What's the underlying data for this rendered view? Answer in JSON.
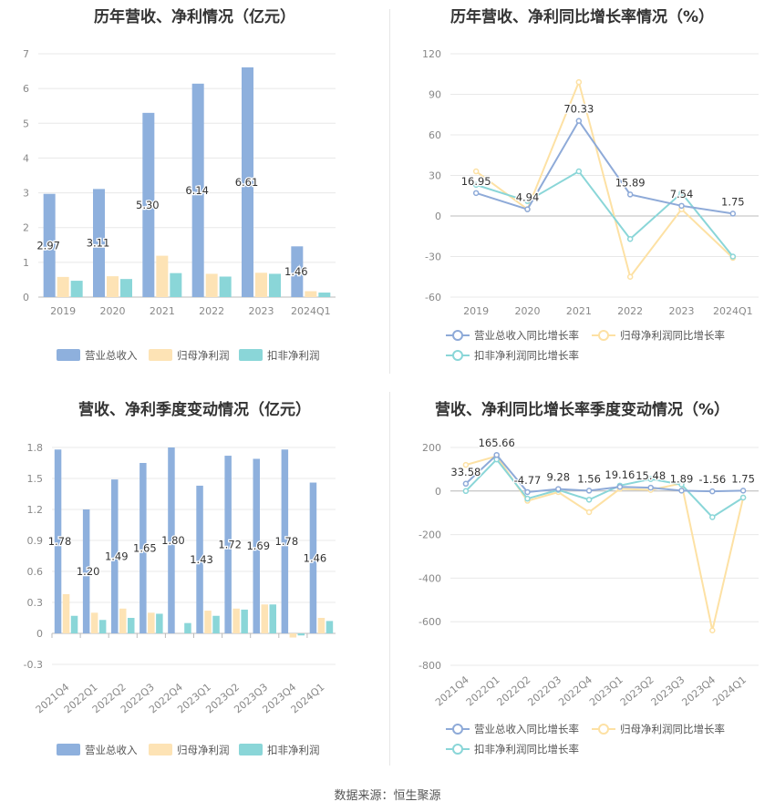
{
  "source": "数据来源：恒生聚源",
  "chart_data": [
    {
      "id": "annual_bar",
      "type": "bar",
      "title": "历年营收、净利情况（亿元）",
      "categories": [
        "2019",
        "2020",
        "2021",
        "2022",
        "2023",
        "2024Q1"
      ],
      "ylim": [
        0,
        7
      ],
      "yticks": [
        0,
        1,
        2,
        3,
        4,
        5,
        6,
        7
      ],
      "grid": true,
      "legend": "bottom",
      "series": [
        {
          "name": "营业总收入",
          "color": "#8eb0dd",
          "values": [
            2.97,
            3.11,
            5.3,
            6.14,
            6.61,
            1.46
          ],
          "labels": [
            "2.97",
            "3.11",
            "5.30",
            "6.14",
            "6.61",
            "1.46"
          ]
        },
        {
          "name": "归母净利润",
          "color": "#fde3b5",
          "values": [
            0.58,
            0.6,
            1.19,
            0.67,
            0.7,
            0.17
          ]
        },
        {
          "name": "扣非净利润",
          "color": "#8ad6d8",
          "values": [
            0.47,
            0.52,
            0.69,
            0.59,
            0.67,
            0.13
          ]
        }
      ]
    },
    {
      "id": "annual_line",
      "type": "line",
      "title": "历年营收、净利同比增长率情况（%）",
      "categories": [
        "2019",
        "2020",
        "2021",
        "2022",
        "2023",
        "2024Q1"
      ],
      "ylim": [
        -60,
        120
      ],
      "yticks": [
        -60,
        -30,
        0,
        30,
        60,
        90,
        120
      ],
      "grid": true,
      "legend": "bottom",
      "series": [
        {
          "name": "营业总收入同比增长率",
          "color": "#8eaad8",
          "values": [
            16.95,
            4.94,
            70.33,
            15.89,
            7.54,
            1.75
          ],
          "labels": [
            "16.95",
            "4.94",
            "70.33",
            "15.89",
            "7.54",
            "1.75"
          ]
        },
        {
          "name": "归母净利润同比增长率",
          "color": "#fde1a4",
          "values": [
            33,
            5,
            99,
            -45,
            5,
            -31
          ]
        },
        {
          "name": "扣非净利润同比增长率",
          "color": "#8ad6d8",
          "values": [
            23,
            11,
            33,
            -17,
            17,
            -30
          ]
        }
      ]
    },
    {
      "id": "quarter_bar",
      "type": "bar",
      "title": "营收、净利季度变动情况（亿元）",
      "categories": [
        "2021Q4",
        "2022Q1",
        "2022Q2",
        "2022Q3",
        "2022Q4",
        "2023Q1",
        "2023Q2",
        "2023Q3",
        "2023Q4",
        "2024Q1"
      ],
      "ylim": [
        -0.3,
        1.8
      ],
      "yticks": [
        -0.3,
        0,
        0.3,
        0.6,
        0.9,
        1.2,
        1.5,
        1.8
      ],
      "ytick_labels": [
        "-0.3",
        "0",
        "0.3",
        "0.6",
        "0.9",
        "1.2",
        "1.5",
        "1.8"
      ],
      "grid": true,
      "legend": "bottom",
      "series": [
        {
          "name": "营业总收入",
          "color": "#8eb0dd",
          "values": [
            1.78,
            1.2,
            1.49,
            1.65,
            1.8,
            1.43,
            1.72,
            1.69,
            1.78,
            1.46
          ],
          "labels": [
            "1.78",
            "1.20",
            "1.49",
            "1.65",
            "1.80",
            "1.43",
            "1.72",
            "1.69",
            "1.78",
            "1.46"
          ]
        },
        {
          "name": "归母净利润",
          "color": "#fde3b5",
          "values": [
            0.38,
            0.2,
            0.24,
            0.2,
            0.0,
            0.22,
            0.24,
            0.28,
            -0.04,
            0.15
          ]
        },
        {
          "name": "扣非净利润",
          "color": "#8ad6d8",
          "values": [
            0.17,
            0.13,
            0.15,
            0.19,
            0.1,
            0.17,
            0.23,
            0.28,
            -0.02,
            0.12
          ]
        }
      ]
    },
    {
      "id": "quarter_line",
      "type": "line",
      "title": "营收、净利同比增长率季度变动情况（%）",
      "categories": [
        "2021Q4",
        "2022Q1",
        "2022Q2",
        "2022Q3",
        "2022Q4",
        "2023Q1",
        "2023Q2",
        "2023Q3",
        "2023Q4",
        "2024Q1"
      ],
      "ylim": [
        -800,
        200
      ],
      "yticks": [
        -800,
        -600,
        -400,
        -200,
        0,
        200
      ],
      "grid": true,
      "legend": "bottom",
      "series": [
        {
          "name": "营业总收入同比增长率",
          "color": "#8eaad8",
          "values": [
            33.58,
            165.66,
            -4.77,
            9.28,
            1.56,
            19.16,
            15.48,
            1.89,
            -1.56,
            1.75
          ],
          "labels": [
            "33.58",
            "165.66",
            "-4.77",
            "9.28",
            "1.56",
            "19.16",
            "15.48",
            "1.89",
            "-1.56",
            "1.75"
          ]
        },
        {
          "name": "归母净利润同比增长率",
          "color": "#fde1a4",
          "values": [
            120,
            160,
            -45,
            -5,
            -97,
            10,
            5,
            35,
            -640,
            -30
          ]
        },
        {
          "name": "扣非净利润同比增长率",
          "color": "#8ad6d8",
          "values": [
            0,
            145,
            -35,
            5,
            -40,
            25,
            55,
            30,
            -120,
            -30
          ]
        }
      ]
    }
  ]
}
